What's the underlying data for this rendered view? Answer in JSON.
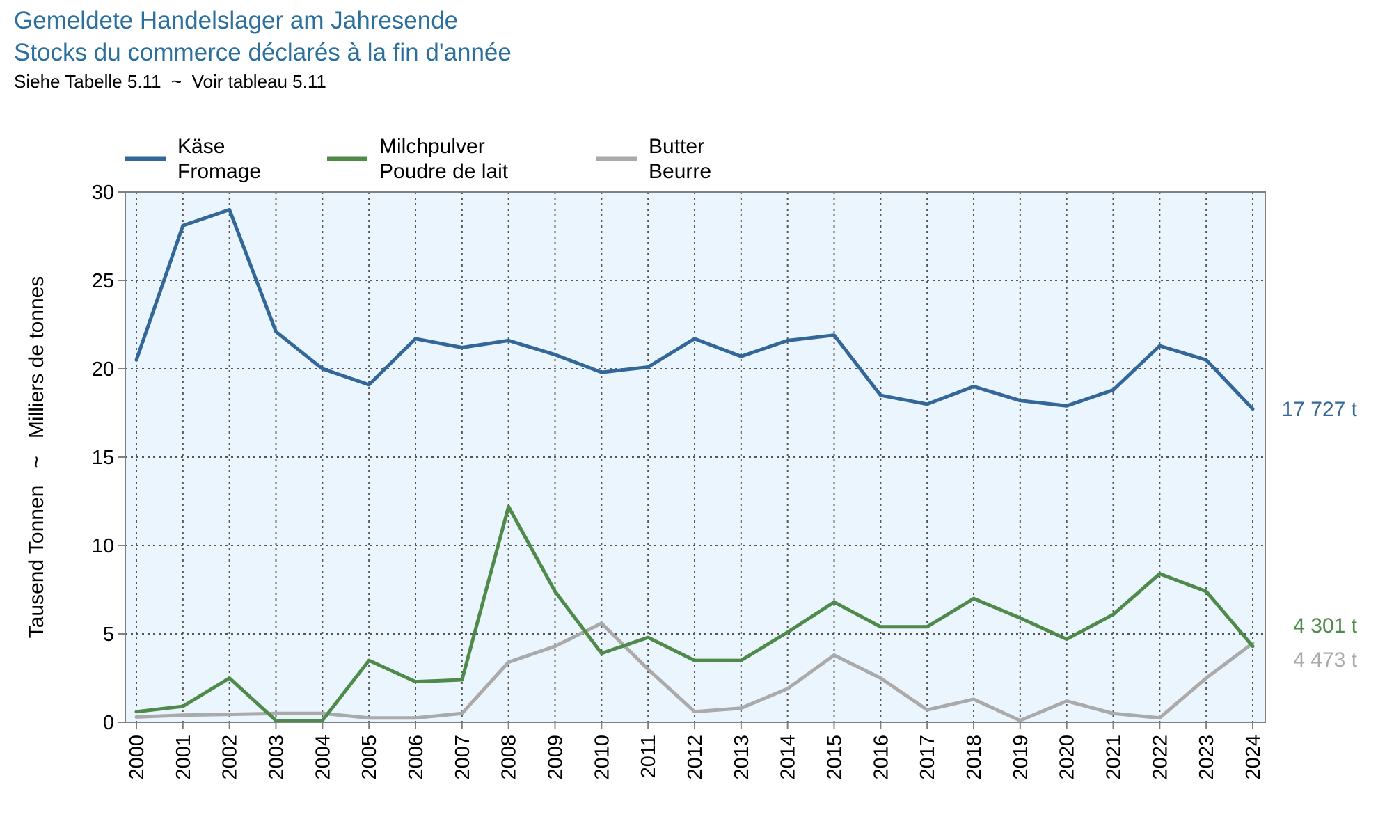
{
  "title": "Gemeldete Handelslager am Jahresende",
  "title_fr": "Stocks du commerce déclarés à la fin d'année",
  "subtitle": "Siehe Tabelle 5.11  ~  Voir tableau 5.11",
  "colors": {
    "kaese": "#336699",
    "milchpulver": "#4f8a4b",
    "butter": "#aaaaaa",
    "plot_bg": "#eaf5fd",
    "grid": "#555555",
    "axis": "#808080"
  },
  "chart_data": {
    "type": "line",
    "ylabel": "Tausend Tonnen   ~   Milliers de tonnes",
    "ylim": [
      0,
      30
    ],
    "yticks": [
      0,
      5,
      10,
      15,
      20,
      25,
      30
    ],
    "grid": true,
    "legend_position": "top-left",
    "x": [
      "2000",
      "2001",
      "2002",
      "2003",
      "2004",
      "2005",
      "2006",
      "2007",
      "2008",
      "2009",
      "2010",
      "2011",
      "2012",
      "2013",
      "2014",
      "2015",
      "2016",
      "2017",
      "2018",
      "2019",
      "2020",
      "2021",
      "2022",
      "2023",
      "2024"
    ],
    "series": [
      {
        "key": "kaese",
        "name": "Käse",
        "name_fr": "Fromage",
        "end_label": "17 727 t",
        "values": [
          20.5,
          28.1,
          29.0,
          22.1,
          20.0,
          19.1,
          21.7,
          21.2,
          21.6,
          20.8,
          19.8,
          20.1,
          21.7,
          20.7,
          21.6,
          21.9,
          18.5,
          18.0,
          19.0,
          18.2,
          17.9,
          18.8,
          21.3,
          20.5,
          17.727
        ]
      },
      {
        "key": "milchpulver",
        "name": "Milchpulver",
        "name_fr": "Poudre de lait",
        "end_label": "4 301 t",
        "values": [
          0.6,
          0.9,
          2.5,
          0.1,
          0.1,
          3.5,
          2.3,
          2.4,
          12.2,
          7.4,
          3.9,
          4.8,
          3.5,
          3.5,
          5.1,
          6.8,
          5.4,
          5.4,
          7.0,
          5.9,
          4.7,
          6.1,
          8.4,
          7.4,
          4.301
        ]
      },
      {
        "key": "butter",
        "name": "Butter",
        "name_fr": "Beurre",
        "end_label": "4 473 t",
        "values": [
          0.3,
          0.4,
          0.45,
          0.5,
          0.5,
          0.25,
          0.25,
          0.5,
          3.4,
          4.3,
          5.6,
          3.0,
          0.6,
          0.8,
          1.9,
          3.8,
          2.5,
          0.7,
          1.3,
          0.1,
          1.2,
          0.5,
          0.25,
          2.5,
          4.473
        ]
      }
    ]
  }
}
